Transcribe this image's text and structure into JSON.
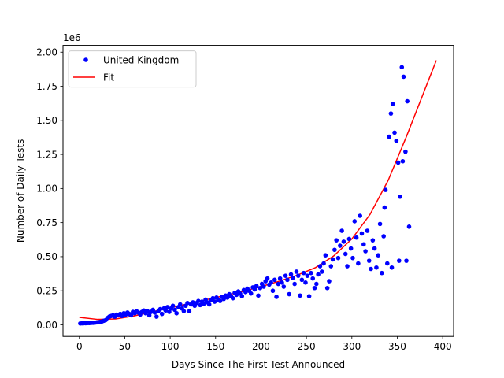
{
  "chart_data": {
    "type": "scatter",
    "xlabel": "Days Since The First Test Announced",
    "ylabel": "Number of Daily Tests",
    "y_offset_label": "1e6",
    "xlim": [
      -18,
      412
    ],
    "ylim": [
      -0.085,
      2.05
    ],
    "x_ticks": [
      0,
      50,
      100,
      150,
      200,
      250,
      300,
      350,
      400
    ],
    "x_tick_labels": [
      "0",
      "50",
      "100",
      "150",
      "200",
      "250",
      "300",
      "350",
      "400"
    ],
    "y_ticks": [
      0.0,
      0.25,
      0.5,
      0.75,
      1.0,
      1.25,
      1.5,
      1.75,
      2.0
    ],
    "y_tick_labels": [
      "0.00",
      "0.25",
      "0.50",
      "0.75",
      "1.00",
      "1.25",
      "1.50",
      "1.75",
      "2.00"
    ],
    "legend_position": "top-left",
    "grid": false,
    "series": [
      {
        "name": "United Kingdom",
        "kind": "scatter",
        "color": "#0000ff",
        "points": [
          [
            1,
            0.01
          ],
          [
            3,
            0.011
          ],
          [
            5,
            0.012
          ],
          [
            7,
            0.012
          ],
          [
            9,
            0.013
          ],
          [
            11,
            0.013
          ],
          [
            13,
            0.014
          ],
          [
            15,
            0.015
          ],
          [
            17,
            0.016
          ],
          [
            19,
            0.018
          ],
          [
            21,
            0.02
          ],
          [
            23,
            0.022
          ],
          [
            25,
            0.025
          ],
          [
            27,
            0.03
          ],
          [
            29,
            0.035
          ],
          [
            31,
            0.05
          ],
          [
            33,
            0.06
          ],
          [
            35,
            0.065
          ],
          [
            37,
            0.07
          ],
          [
            39,
            0.06
          ],
          [
            41,
            0.075
          ],
          [
            43,
            0.07
          ],
          [
            45,
            0.08
          ],
          [
            47,
            0.065
          ],
          [
            49,
            0.085
          ],
          [
            51,
            0.075
          ],
          [
            53,
            0.09
          ],
          [
            55,
            0.08
          ],
          [
            57,
            0.07
          ],
          [
            59,
            0.095
          ],
          [
            61,
            0.085
          ],
          [
            63,
            0.1
          ],
          [
            65,
            0.09
          ],
          [
            67,
            0.075
          ],
          [
            69,
            0.095
          ],
          [
            71,
            0.105
          ],
          [
            73,
            0.085
          ],
          [
            75,
            0.1
          ],
          [
            77,
            0.07
          ],
          [
            79,
            0.095
          ],
          [
            81,
            0.11
          ],
          [
            83,
            0.09
          ],
          [
            85,
            0.06
          ],
          [
            87,
            0.1
          ],
          [
            89,
            0.115
          ],
          [
            91,
            0.08
          ],
          [
            93,
            0.12
          ],
          [
            95,
            0.105
          ],
          [
            97,
            0.13
          ],
          [
            99,
            0.095
          ],
          [
            101,
            0.12
          ],
          [
            103,
            0.14
          ],
          [
            105,
            0.11
          ],
          [
            107,
            0.085
          ],
          [
            109,
            0.13
          ],
          [
            111,
            0.15
          ],
          [
            113,
            0.12
          ],
          [
            115,
            0.1
          ],
          [
            117,
            0.14
          ],
          [
            119,
            0.16
          ],
          [
            121,
            0.1
          ],
          [
            123,
            0.15
          ],
          [
            125,
            0.165
          ],
          [
            127,
            0.14
          ],
          [
            129,
            0.16
          ],
          [
            131,
            0.175
          ],
          [
            133,
            0.145
          ],
          [
            135,
            0.17
          ],
          [
            137,
            0.155
          ],
          [
            139,
            0.185
          ],
          [
            141,
            0.165
          ],
          [
            143,
            0.15
          ],
          [
            145,
            0.18
          ],
          [
            147,
            0.195
          ],
          [
            149,
            0.17
          ],
          [
            151,
            0.2
          ],
          [
            153,
            0.185
          ],
          [
            155,
            0.175
          ],
          [
            157,
            0.205
          ],
          [
            159,
            0.19
          ],
          [
            161,
            0.215
          ],
          [
            163,
            0.2
          ],
          [
            165,
            0.225
          ],
          [
            167,
            0.21
          ],
          [
            169,
            0.195
          ],
          [
            171,
            0.235
          ],
          [
            173,
            0.22
          ],
          [
            175,
            0.245
          ],
          [
            177,
            0.23
          ],
          [
            179,
            0.21
          ],
          [
            181,
            0.255
          ],
          [
            183,
            0.24
          ],
          [
            185,
            0.265
          ],
          [
            187,
            0.25
          ],
          [
            189,
            0.23
          ],
          [
            191,
            0.275
          ],
          [
            193,
            0.26
          ],
          [
            195,
            0.285
          ],
          [
            197,
            0.215
          ],
          [
            199,
            0.27
          ],
          [
            201,
            0.3
          ],
          [
            203,
            0.28
          ],
          [
            205,
            0.32
          ],
          [
            207,
            0.34
          ],
          [
            209,
            0.295
          ],
          [
            211,
            0.31
          ],
          [
            213,
            0.25
          ],
          [
            215,
            0.33
          ],
          [
            217,
            0.205
          ],
          [
            219,
            0.3
          ],
          [
            221,
            0.34
          ],
          [
            223,
            0.31
          ],
          [
            225,
            0.28
          ],
          [
            227,
            0.36
          ],
          [
            229,
            0.33
          ],
          [
            231,
            0.225
          ],
          [
            233,
            0.37
          ],
          [
            235,
            0.345
          ],
          [
            237,
            0.3
          ],
          [
            239,
            0.39
          ],
          [
            241,
            0.36
          ],
          [
            243,
            0.215
          ],
          [
            245,
            0.33
          ],
          [
            247,
            0.38
          ],
          [
            249,
            0.31
          ],
          [
            251,
            0.36
          ],
          [
            253,
            0.21
          ],
          [
            255,
            0.38
          ],
          [
            257,
            0.34
          ],
          [
            259,
            0.27
          ],
          [
            261,
            0.3
          ],
          [
            263,
            0.37
          ],
          [
            265,
            0.43
          ],
          [
            267,
            0.39
          ],
          [
            269,
            0.45
          ],
          [
            271,
            0.51
          ],
          [
            273,
            0.27
          ],
          [
            275,
            0.32
          ],
          [
            277,
            0.43
          ],
          [
            279,
            0.48
          ],
          [
            281,
            0.55
          ],
          [
            283,
            0.62
          ],
          [
            285,
            0.49
          ],
          [
            287,
            0.58
          ],
          [
            289,
            0.69
          ],
          [
            291,
            0.61
          ],
          [
            293,
            0.52
          ],
          [
            295,
            0.43
          ],
          [
            297,
            0.63
          ],
          [
            299,
            0.56
          ],
          [
            301,
            0.49
          ],
          [
            303,
            0.76
          ],
          [
            305,
            0.64
          ],
          [
            307,
            0.45
          ],
          [
            309,
            0.8
          ],
          [
            311,
            0.67
          ],
          [
            313,
            0.59
          ],
          [
            315,
            0.54
          ],
          [
            317,
            0.69
          ],
          [
            319,
            0.47
          ],
          [
            321,
            0.41
          ],
          [
            323,
            0.62
          ],
          [
            325,
            0.56
          ],
          [
            327,
            0.42
          ],
          [
            329,
            0.51
          ],
          [
            331,
            0.74
          ],
          [
            333,
            0.38
          ],
          [
            335,
            0.65
          ],
          [
            337,
            0.99
          ],
          [
            339,
            0.45
          ],
          [
            341,
            1.38
          ],
          [
            343,
            1.55
          ],
          [
            345,
            1.62
          ],
          [
            347,
            1.41
          ],
          [
            349,
            1.35
          ],
          [
            351,
            1.19
          ],
          [
            353,
            0.94
          ],
          [
            355,
            1.89
          ],
          [
            357,
            1.82
          ],
          [
            359,
            1.27
          ],
          [
            361,
            1.64
          ],
          [
            363,
            0.72
          ],
          [
            336,
            0.86
          ],
          [
            356,
            1.2
          ],
          [
            360,
            0.47
          ],
          [
            352,
            0.47
          ],
          [
            344,
            0.42
          ]
        ]
      },
      {
        "name": "Fit",
        "kind": "line",
        "color": "#ff0000",
        "points": [
          [
            0,
            0.055
          ],
          [
            20,
            0.04
          ],
          [
            40,
            0.043
          ],
          [
            60,
            0.065
          ],
          [
            80,
            0.095
          ],
          [
            100,
            0.125
          ],
          [
            120,
            0.155
          ],
          [
            140,
            0.185
          ],
          [
            160,
            0.215
          ],
          [
            180,
            0.245
          ],
          [
            200,
            0.28
          ],
          [
            220,
            0.32
          ],
          [
            240,
            0.365
          ],
          [
            260,
            0.42
          ],
          [
            280,
            0.505
          ],
          [
            300,
            0.63
          ],
          [
            320,
            0.81
          ],
          [
            340,
            1.06
          ],
          [
            360,
            1.38
          ],
          [
            380,
            1.72
          ],
          [
            393,
            1.94
          ]
        ]
      }
    ]
  }
}
